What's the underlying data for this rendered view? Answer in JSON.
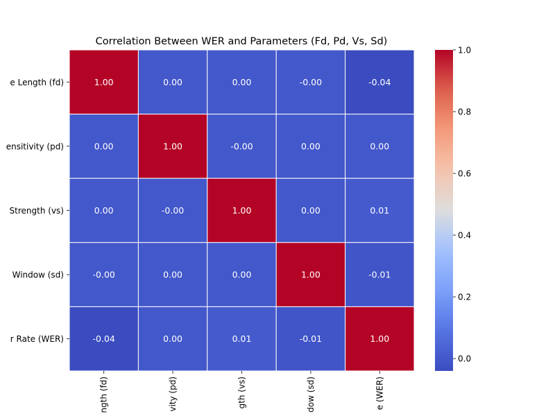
{
  "chart_data": {
    "type": "heatmap",
    "title": "Correlation Between WER and Parameters (Fd, Pd, Vs, Sd)",
    "row_labels": [
      "e Length (fd)",
      "ensitivity (pd)",
      "Strength (vs)",
      "Window (sd)",
      "r Rate (WER)"
    ],
    "col_labels": [
      "ngth (fd)",
      "vity (pd)",
      "gth (vs)",
      "dow (sd)",
      "e (WER)"
    ],
    "values": [
      [
        1.0,
        0.0,
        0.0,
        -0.0,
        -0.04
      ],
      [
        0.0,
        1.0,
        -0.0,
        0.0,
        0.0
      ],
      [
        0.0,
        -0.0,
        1.0,
        0.0,
        0.01
      ],
      [
        -0.0,
        0.0,
        0.0,
        1.0,
        -0.01
      ],
      [
        -0.04,
        0.0,
        0.01,
        -0.01,
        1.0
      ]
    ],
    "cell_labels": [
      [
        "1.00",
        "0.00",
        "0.00",
        "-0.00",
        "-0.04"
      ],
      [
        "0.00",
        "1.00",
        "-0.00",
        "0.00",
        "0.00"
      ],
      [
        "0.00",
        "-0.00",
        "1.00",
        "0.00",
        "0.01"
      ],
      [
        "-0.00",
        "0.00",
        "0.00",
        "1.00",
        "-0.01"
      ],
      [
        "-0.04",
        "0.00",
        "0.01",
        "-0.01",
        "1.00"
      ]
    ],
    "colormap": "coolwarm",
    "vmin": -0.04,
    "vmax": 1.0,
    "colorbar_ticks": [
      "0.0",
      "0.2",
      "0.4",
      "0.6",
      "0.8",
      "1.0"
    ],
    "colorbar_tick_values": [
      0.0,
      0.2,
      0.4,
      0.6,
      0.8,
      1.0
    ],
    "cell_border_color": "#ffffff"
  }
}
